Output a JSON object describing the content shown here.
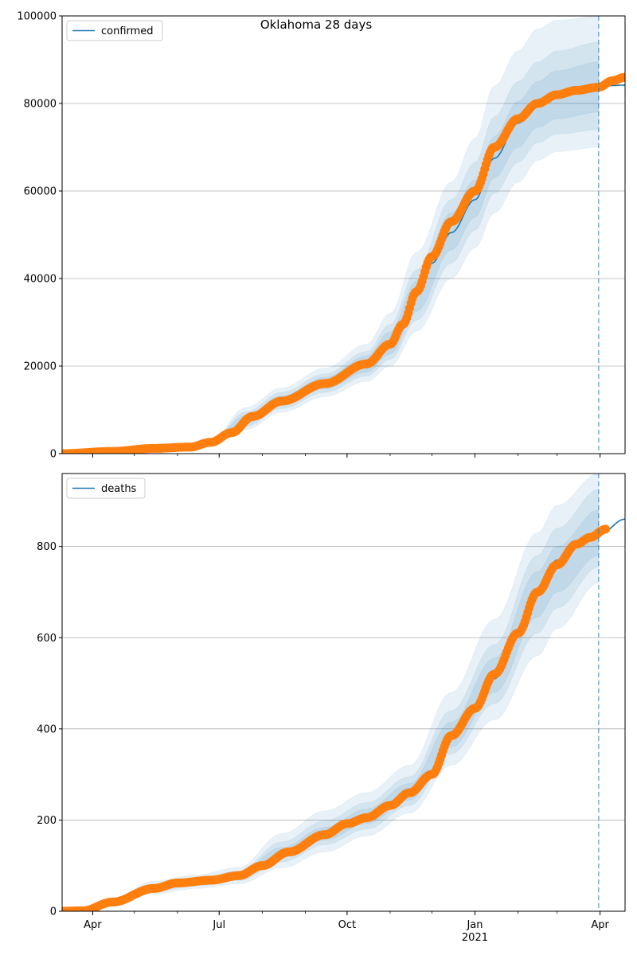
{
  "figure": {
    "suptitle": "Oklahoma 28 days",
    "colors": {
      "model": "#1f77b4",
      "observed": "#ff7f0e",
      "band": "#1f77b4",
      "grid": "#b0b0b0"
    },
    "x_ticks": [
      {
        "date": "2020-04-01",
        "label": "Apr",
        "sublabel": ""
      },
      {
        "date": "2020-07-01",
        "label": "Jul",
        "sublabel": ""
      },
      {
        "date": "2020-10-01",
        "label": "Oct",
        "sublabel": ""
      },
      {
        "date": "2021-01-01",
        "label": "Jan",
        "sublabel": "2021"
      },
      {
        "date": "2021-04-01",
        "label": "Apr",
        "sublabel": ""
      }
    ]
  },
  "chart_data": [
    {
      "type": "line",
      "legend": "confirmed",
      "legend_position": "top-left",
      "grid": "horizontal",
      "xlim": [
        "2020-03-10",
        "2021-04-19"
      ],
      "ylim": [
        0,
        100000
      ],
      "y_ticks": [
        0,
        20000,
        40000,
        60000,
        80000,
        100000
      ],
      "forecast_start": "2021-03-31",
      "series": [
        {
          "name": "confirmed",
          "style": "line",
          "points": [
            [
              "2020-03-10",
              0
            ],
            [
              "2020-04-15",
              500
            ],
            [
              "2020-05-15",
              1200
            ],
            [
              "2020-06-10",
              1500
            ],
            [
              "2020-06-25",
              2600
            ],
            [
              "2020-07-10",
              4800
            ],
            [
              "2020-07-25",
              8500
            ],
            [
              "2020-08-15",
              12000
            ],
            [
              "2020-09-15",
              16000
            ],
            [
              "2020-10-15",
              20500
            ],
            [
              "2020-11-01",
              25000
            ],
            [
              "2020-11-10",
              29000
            ],
            [
              "2020-11-20",
              36000
            ],
            [
              "2020-12-01",
              43500
            ],
            [
              "2020-12-15",
              50500
            ],
            [
              "2021-01-01",
              58000
            ],
            [
              "2021-01-15",
              67500
            ],
            [
              "2021-02-01",
              75500
            ],
            [
              "2021-02-15",
              79500
            ],
            [
              "2021-03-01",
              81800
            ],
            [
              "2021-03-15",
              82800
            ],
            [
              "2021-03-31",
              83500
            ],
            [
              "2021-04-10",
              84100
            ],
            [
              "2021-04-19",
              84200
            ]
          ]
        },
        {
          "name": "",
          "style": "markers",
          "points": [
            [
              "2020-03-10",
              0
            ],
            [
              "2020-04-15",
              500
            ],
            [
              "2020-05-15",
              1200
            ],
            [
              "2020-06-10",
              1500
            ],
            [
              "2020-06-25",
              2600
            ],
            [
              "2020-07-10",
              4800
            ],
            [
              "2020-07-25",
              8500
            ],
            [
              "2020-08-15",
              12000
            ],
            [
              "2020-09-15",
              16000
            ],
            [
              "2020-10-15",
              20500
            ],
            [
              "2020-11-01",
              25000
            ],
            [
              "2020-11-10",
              29500
            ],
            [
              "2020-11-20",
              37000
            ],
            [
              "2020-12-01",
              45000
            ],
            [
              "2020-12-15",
              53000
            ],
            [
              "2021-01-01",
              60000
            ],
            [
              "2021-01-15",
              70000
            ],
            [
              "2021-02-01",
              76500
            ],
            [
              "2021-02-15",
              80000
            ],
            [
              "2021-03-01",
              82000
            ],
            [
              "2021-03-15",
              83000
            ],
            [
              "2021-03-31",
              83700
            ],
            [
              "2021-04-10",
              85200
            ],
            [
              "2021-04-19",
              86000
            ]
          ]
        }
      ],
      "bands": [
        {
          "points": [
            [
              "2020-06-25",
              2400,
              3000
            ],
            [
              "2020-07-20",
              5500,
              10500
            ],
            [
              "2020-08-15",
              9500,
              15000
            ],
            [
              "2020-09-15",
              13000,
              19500
            ],
            [
              "2020-10-15",
              16500,
              25000
            ],
            [
              "2020-11-01",
              20000,
              32000
            ],
            [
              "2020-11-20",
              28000,
              46000
            ],
            [
              "2020-12-15",
              40000,
              62000
            ],
            [
              "2021-01-01",
              47000,
              72000
            ],
            [
              "2021-01-15",
              55000,
              84000
            ],
            [
              "2021-02-01",
              62000,
              92000
            ],
            [
              "2021-02-15",
              67000,
              97000
            ],
            [
              "2021-03-01",
              69000,
              99000
            ],
            [
              "2021-03-31",
              70000,
              100000
            ]
          ]
        },
        {
          "points": [
            [
              "2020-06-25",
              2500,
              2900
            ],
            [
              "2020-07-20",
              6200,
              9500
            ],
            [
              "2020-08-15",
              10300,
              14000
            ],
            [
              "2020-09-15",
              14000,
              18200
            ],
            [
              "2020-10-15",
              17700,
              23300
            ],
            [
              "2020-11-01",
              21500,
              29500
            ],
            [
              "2020-11-20",
              30500,
              42000
            ],
            [
              "2020-12-15",
              43500,
              58000
            ],
            [
              "2021-01-01",
              51000,
              66500
            ],
            [
              "2021-01-15",
              59500,
              77000
            ],
            [
              "2021-02-01",
              66500,
              85000
            ],
            [
              "2021-02-15",
              71000,
              89500
            ],
            [
              "2021-03-01",
              73000,
              92000
            ],
            [
              "2021-03-31",
              74000,
              94000
            ]
          ]
        },
        {
          "points": [
            [
              "2020-06-25",
              2550,
              2800
            ],
            [
              "2020-07-20",
              6800,
              8700
            ],
            [
              "2020-08-15",
              11000,
              13200
            ],
            [
              "2020-09-15",
              14800,
              17400
            ],
            [
              "2020-10-15",
              18600,
              22300
            ],
            [
              "2020-11-01",
              22700,
              27800
            ],
            [
              "2020-11-20",
              32500,
              39500
            ],
            [
              "2020-12-15",
              46500,
              55000
            ],
            [
              "2021-01-01",
              54000,
              62500
            ],
            [
              "2021-01-15",
              63000,
              72500
            ],
            [
              "2021-02-01",
              70000,
              80500
            ],
            [
              "2021-02-15",
              74500,
              85000
            ],
            [
              "2021-03-01",
              76500,
              87500
            ],
            [
              "2021-03-31",
              78000,
              89500
            ]
          ]
        }
      ]
    },
    {
      "type": "line",
      "legend": "deaths",
      "legend_position": "top-left",
      "grid": "horizontal",
      "xlim": [
        "2020-03-10",
        "2021-04-19"
      ],
      "ylim": [
        0,
        960
      ],
      "y_ticks": [
        0,
        200,
        400,
        600,
        800
      ],
      "forecast_start": "2021-03-31",
      "series": [
        {
          "name": "deaths",
          "style": "line",
          "points": [
            [
              "2020-03-10",
              0
            ],
            [
              "2020-03-25",
              1
            ],
            [
              "2020-04-15",
              20
            ],
            [
              "2020-05-15",
              50
            ],
            [
              "2020-06-01",
              62
            ],
            [
              "2020-06-25",
              68
            ],
            [
              "2020-07-15",
              78
            ],
            [
              "2020-08-01",
              100
            ],
            [
              "2020-08-20",
              130
            ],
            [
              "2020-09-15",
              168
            ],
            [
              "2020-10-01",
              192
            ],
            [
              "2020-10-15",
              205
            ],
            [
              "2020-11-01",
              232
            ],
            [
              "2020-11-15",
              260
            ],
            [
              "2020-12-01",
              305
            ],
            [
              "2020-12-15",
              380
            ],
            [
              "2021-01-01",
              440
            ],
            [
              "2021-01-15",
              510
            ],
            [
              "2021-02-01",
              605
            ],
            [
              "2021-02-15",
              700
            ],
            [
              "2021-03-01",
              770
            ],
            [
              "2021-03-15",
              805
            ],
            [
              "2021-03-31",
              825
            ],
            [
              "2021-04-19",
              860
            ]
          ]
        },
        {
          "name": "",
          "style": "markers",
          "points": [
            [
              "2020-03-10",
              0
            ],
            [
              "2020-03-25",
              1
            ],
            [
              "2020-04-15",
              20
            ],
            [
              "2020-05-15",
              50
            ],
            [
              "2020-06-01",
              62
            ],
            [
              "2020-06-25",
              68
            ],
            [
              "2020-07-15",
              78
            ],
            [
              "2020-08-01",
              100
            ],
            [
              "2020-08-20",
              130
            ],
            [
              "2020-09-15",
              168
            ],
            [
              "2020-10-01",
              192
            ],
            [
              "2020-10-15",
              205
            ],
            [
              "2020-11-01",
              232
            ],
            [
              "2020-11-15",
              260
            ],
            [
              "2020-12-01",
              300
            ],
            [
              "2020-12-15",
              385
            ],
            [
              "2021-01-01",
              445
            ],
            [
              "2021-01-15",
              520
            ],
            [
              "2021-02-01",
              610
            ],
            [
              "2021-02-15",
              700
            ],
            [
              "2021-03-01",
              760
            ],
            [
              "2021-03-15",
              805
            ],
            [
              "2021-03-25",
              820
            ],
            [
              "2021-04-05",
              838
            ]
          ]
        }
      ],
      "bands": [
        {
          "points": [
            [
              "2020-03-25",
              0,
              3
            ],
            [
              "2020-04-15",
              12,
              28
            ],
            [
              "2020-05-15",
              38,
              66
            ],
            [
              "2020-06-15",
              50,
              80
            ],
            [
              "2020-07-15",
              60,
              96
            ],
            [
              "2020-08-15",
              95,
              170
            ],
            [
              "2020-09-15",
              130,
              220
            ],
            [
              "2020-10-15",
              165,
              260
            ],
            [
              "2020-11-15",
              215,
              320
            ],
            [
              "2020-12-15",
              320,
              480
            ],
            [
              "2021-01-15",
              420,
              640
            ],
            [
              "2021-02-15",
              560,
              830
            ],
            [
              "2021-03-01",
              620,
              890
            ],
            [
              "2021-03-31",
              720,
              960
            ]
          ]
        },
        {
          "points": [
            [
              "2020-03-25",
              0,
              2
            ],
            [
              "2020-04-15",
              15,
              25
            ],
            [
              "2020-05-15",
              43,
              60
            ],
            [
              "2020-06-15",
              56,
              74
            ],
            [
              "2020-07-15",
              67,
              88
            ],
            [
              "2020-08-15",
              108,
              152
            ],
            [
              "2020-09-15",
              146,
              198
            ],
            [
              "2020-10-15",
              180,
              238
            ],
            [
              "2020-11-15",
              232,
              295
            ],
            [
              "2020-12-15",
              345,
              440
            ],
            [
              "2021-01-15",
              455,
              585
            ],
            [
              "2021-02-15",
              610,
              780
            ],
            [
              "2021-03-01",
              665,
              840
            ],
            [
              "2021-03-31",
              755,
              925
            ]
          ]
        },
        {
          "points": [
            [
              "2020-03-25",
              0,
              1
            ],
            [
              "2020-04-15",
              17,
              23
            ],
            [
              "2020-05-15",
              46,
              56
            ],
            [
              "2020-06-15",
              60,
              70
            ],
            [
              "2020-07-15",
              72,
              84
            ],
            [
              "2020-08-15",
              118,
              140
            ],
            [
              "2020-09-15",
              156,
              184
            ],
            [
              "2020-10-15",
              192,
              224
            ],
            [
              "2020-11-15",
              244,
              280
            ],
            [
              "2020-12-15",
              360,
              415
            ],
            [
              "2021-01-15",
              480,
              555
            ],
            [
              "2021-02-15",
              645,
              745
            ],
            [
              "2021-03-01",
              700,
              800
            ],
            [
              "2021-03-31",
              780,
              880
            ]
          ]
        }
      ]
    }
  ]
}
